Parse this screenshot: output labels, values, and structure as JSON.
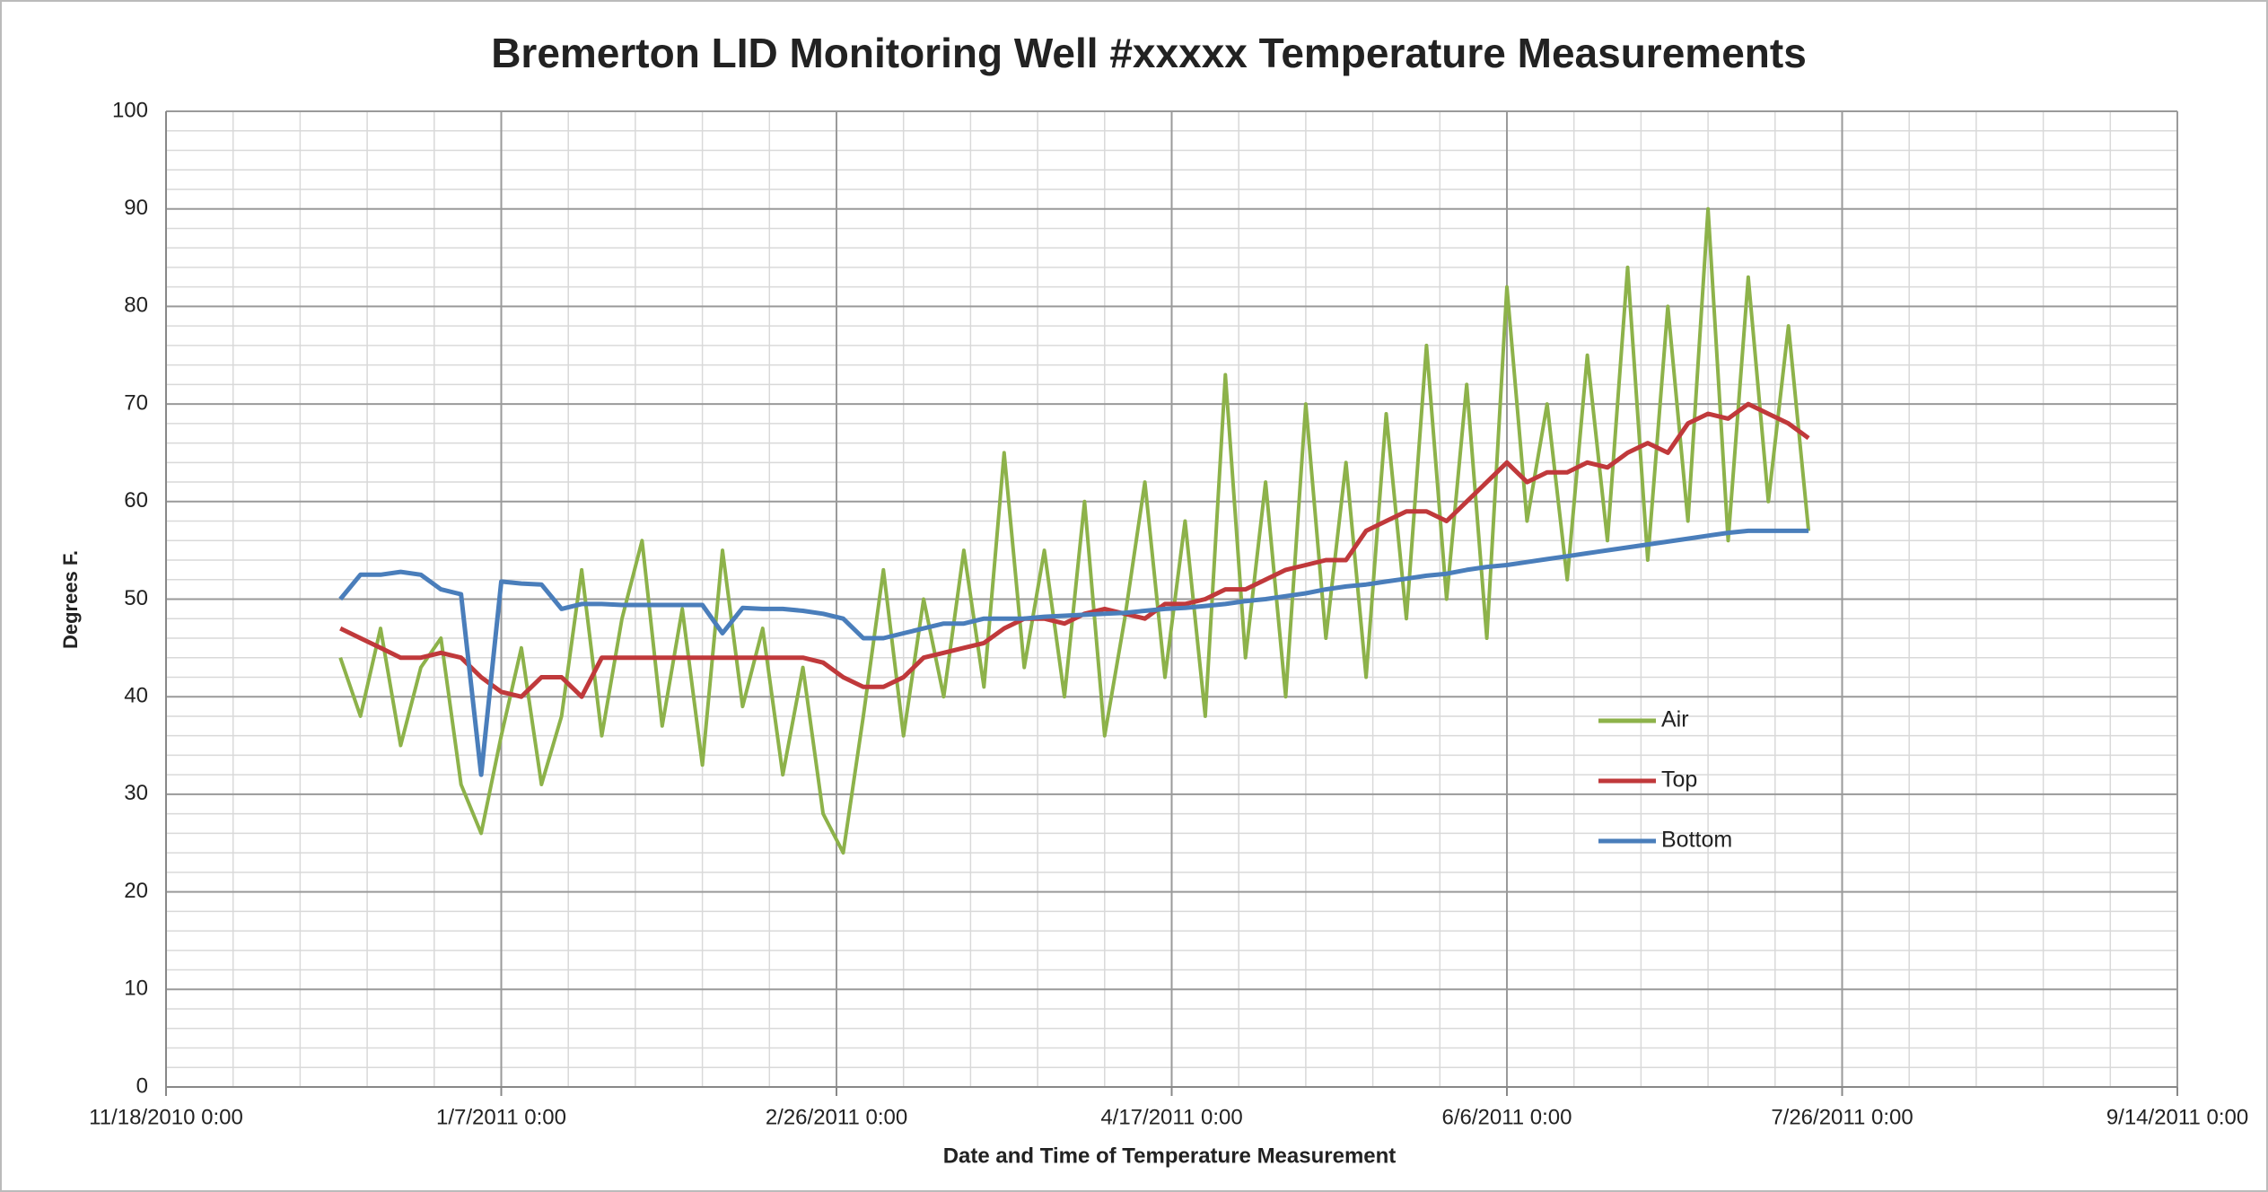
{
  "chart_data": {
    "type": "line",
    "title": "Bremerton LID Monitoring Well #xxxxx Temperature Measurements",
    "x_label": "Date and Time of Temperature Measurement",
    "y_label": "Degrees F.",
    "xlim": [
      "11/18/2010 0:00",
      "9/14/2011 0:00"
    ],
    "xticks": [
      "11/18/2010 0:00",
      "1/7/2011 0:00",
      "2/26/2011 0:00",
      "4/17/2011 0:00",
      "6/6/2011 0:00",
      "7/26/2011 0:00",
      "9/14/2011 0:00"
    ],
    "ylim": [
      0,
      100
    ],
    "yticks": [
      0,
      10,
      20,
      30,
      40,
      50,
      60,
      70,
      80,
      90,
      100
    ],
    "grid": true,
    "legend": "center-right",
    "x": [
      "12/14/2010 0:00",
      "12/17/2010 0:00",
      "12/20/2010 0:00",
      "12/23/2010 0:00",
      "12/26/2010 0:00",
      "12/29/2010 0:00",
      "1/1/2011 0:00",
      "1/4/2011 0:00",
      "1/7/2011 0:00",
      "1/10/2011 0:00",
      "1/13/2011 0:00",
      "1/16/2011 0:00",
      "1/19/2011 0:00",
      "1/22/2011 0:00",
      "1/25/2011 0:00",
      "1/28/2011 0:00",
      "1/31/2011 0:00",
      "2/3/2011 0:00",
      "2/6/2011 0:00",
      "2/9/2011 0:00",
      "2/12/2011 0:00",
      "2/15/2011 0:00",
      "2/18/2011 0:00",
      "2/21/2011 0:00",
      "2/24/2011 0:00",
      "2/27/2011 0:00",
      "3/2/2011 0:00",
      "3/5/2011 0:00",
      "3/8/2011 0:00",
      "3/11/2011 0:00",
      "3/14/2011 0:00",
      "3/17/2011 0:00",
      "3/20/2011 0:00",
      "3/23/2011 0:00",
      "3/26/2011 0:00",
      "3/29/2011 0:00",
      "4/1/2011 0:00",
      "4/4/2011 0:00",
      "4/7/2011 0:00",
      "4/10/2011 0:00",
      "4/13/2011 0:00",
      "4/16/2011 0:00",
      "4/19/2011 0:00",
      "4/22/2011 0:00",
      "4/25/2011 0:00",
      "4/28/2011 0:00",
      "5/1/2011 0:00",
      "5/4/2011 0:00",
      "5/7/2011 0:00",
      "5/10/2011 0:00",
      "5/13/2011 0:00",
      "5/16/2011 0:00",
      "5/19/2011 0:00",
      "5/22/2011 0:00",
      "5/25/2011 0:00",
      "5/28/2011 0:00",
      "5/31/2011 0:00",
      "6/3/2011 0:00",
      "6/6/2011 0:00",
      "6/9/2011 0:00",
      "6/12/2011 0:00",
      "6/15/2011 0:00",
      "6/18/2011 0:00",
      "6/21/2011 0:00",
      "6/24/2011 0:00",
      "6/27/2011 0:00",
      "6/30/2011 0:00",
      "7/3/2011 0:00",
      "7/6/2011 0:00",
      "7/9/2011 0:00",
      "7/12/2011 0:00",
      "7/15/2011 0:00",
      "7/18/2011 0:00",
      "7/21/2011 0:00"
    ],
    "series": [
      {
        "name": "Air",
        "color": "#8db24a",
        "values": [
          44,
          38,
          47,
          35,
          43,
          46,
          31,
          26,
          36,
          45,
          31,
          38,
          53,
          36,
          48,
          56,
          37,
          49,
          33,
          55,
          39,
          47,
          32,
          43,
          28,
          24,
          38,
          53,
          36,
          50,
          40,
          55,
          41,
          65,
          43,
          55,
          40,
          60,
          36,
          48,
          62,
          42,
          58,
          38,
          73,
          44,
          62,
          40,
          70,
          46,
          64,
          42,
          69,
          48,
          76,
          50,
          72,
          46,
          82,
          58,
          70,
          52,
          75,
          56,
          84,
          54,
          80,
          58,
          90,
          56,
          83,
          60,
          78,
          57
        ]
      },
      {
        "name": "Top",
        "color": "#c0393b",
        "values": [
          47,
          46,
          45,
          44,
          44,
          44.5,
          44,
          42,
          40.5,
          40,
          42,
          42,
          40,
          44,
          44,
          44,
          44,
          44,
          44,
          44,
          44,
          44,
          44,
          44,
          43.5,
          42,
          41,
          41,
          42,
          44,
          44.5,
          45,
          45.5,
          47,
          48,
          48,
          47.5,
          48.5,
          49,
          48.5,
          48,
          49.5,
          49.5,
          50,
          51,
          51,
          52,
          53,
          53.5,
          54,
          54,
          57,
          58,
          59,
          59,
          58,
          60,
          62,
          64,
          62,
          63,
          63,
          64,
          63.5,
          65,
          66,
          65,
          68,
          69,
          68.5,
          70,
          69,
          68,
          66.5
        ]
      },
      {
        "name": "Bottom",
        "color": "#4a7ebb",
        "values": [
          50,
          52.5,
          52.5,
          52.8,
          52.5,
          51,
          50.5,
          32,
          51.8,
          51.6,
          51.5,
          49,
          49.5,
          49.5,
          49.4,
          49.4,
          49.4,
          49.4,
          49.4,
          46.5,
          49.1,
          49,
          49,
          48.8,
          48.5,
          48,
          46,
          46,
          46.5,
          47,
          47.5,
          47.5,
          48,
          48,
          48,
          48.2,
          48.3,
          48.4,
          48.5,
          48.6,
          48.8,
          49,
          49.1,
          49.3,
          49.5,
          49.8,
          50,
          50.3,
          50.6,
          51,
          51.3,
          51.5,
          51.8,
          52.1,
          52.4,
          52.6,
          53,
          53.3,
          53.5,
          53.8,
          54.1,
          54.4,
          54.7,
          55,
          55.3,
          55.6,
          55.9,
          56.2,
          56.5,
          56.8,
          57,
          57,
          57,
          57
        ]
      }
    ]
  }
}
